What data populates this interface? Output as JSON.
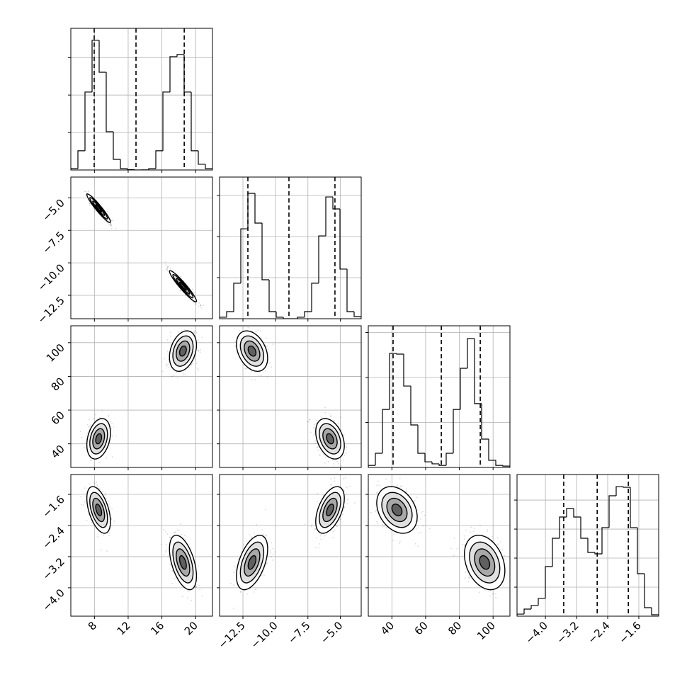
{
  "chart_data": {
    "type": "corner",
    "grid": true,
    "line_color": "#000000",
    "grid_color": "#b0b0b0",
    "point_color": "#000000",
    "contour_levels": [
      2,
      1.5,
      1,
      0.5
    ],
    "contour_fills": [
      "#ffffff",
      "#e0e0e0",
      "#a8a8a8",
      "#606060"
    ],
    "variables": [
      {
        "lim": [
          5.2,
          22.0
        ],
        "ticks": [
          8,
          12,
          16,
          20
        ],
        "quantiles": [
          7.97,
          12.93,
          18.65
        ],
        "hist": {
          "bins": [
            5.2,
            6.04,
            6.88,
            7.72,
            8.56,
            9.4,
            10.24,
            11.08,
            11.92,
            12.76,
            13.6,
            14.44,
            15.28,
            16.12,
            16.96,
            17.8,
            18.64,
            19.48,
            20.32,
            21.16,
            22.0
          ],
          "counts": [
            9,
            128,
            520,
            865,
            652,
            255,
            71,
            9,
            2,
            0,
            1,
            9,
            128,
            520,
            756,
            770,
            520,
            128,
            38,
            9
          ],
          "ylim": [
            0,
            945
          ],
          "yticks": [
            250,
            500,
            750
          ]
        }
      },
      {
        "lim": [
          -14.3,
          -3.4
        ],
        "ticks": [
          {
            "value": -12.5,
            "label": "−12.5"
          },
          {
            "value": -10,
            "label": "−10.0"
          },
          {
            "value": -7.5,
            "label": "−7.5"
          },
          {
            "value": -5,
            "label": "−5.0"
          }
        ],
        "quantiles": [
          -12.12,
          -8.96,
          -5.42
        ],
        "hist": {
          "bins": [
            -14.3,
            -13.755,
            -13.21,
            -12.665,
            -12.12,
            -11.575,
            -11.03,
            -10.485,
            -9.94,
            -9.395,
            -8.85,
            -8.305,
            -7.76,
            -7.215,
            -6.67,
            -6.125,
            -5.58,
            -5.035,
            -4.49,
            -3.945,
            -3.4
          ],
          "counts": [
            9,
            43,
            216,
            547,
            763,
            582,
            237,
            43,
            9,
            0,
            0,
            9,
            43,
            216,
            504,
            741,
            668,
            302,
            43,
            13
          ],
          "ylim": [
            0,
            862
          ],
          "yticks": [
            250,
            500,
            750
          ]
        }
      },
      {
        "lim": [
          26,
          110
        ],
        "ticks": [
          40,
          60,
          80,
          100
        ],
        "quantiles": [
          40.7,
          69.3,
          92.4
        ],
        "hist": {
          "bins": [
            26,
            30.2,
            34.4,
            38.6,
            42.8,
            47,
            51.2,
            55.4,
            59.6,
            63.8,
            68,
            72.2,
            76.4,
            80.6,
            84.8,
            89,
            93.2,
            97.4,
            101.6,
            105.8,
            110
          ],
          "counts": [
            9,
            63,
            258,
            507,
            504,
            362,
            189,
            63,
            25,
            16,
            9,
            63,
            258,
            441,
            573,
            284,
            126,
            32,
            9,
            6
          ],
          "ylim": [
            0,
            630
          ],
          "yticks": [
            200,
            400,
            600
          ]
        }
      },
      {
        "lim": [
          -4.73,
          -1.09
        ],
        "ticks": [
          {
            "value": -4.0,
            "label": "−4.0"
          },
          {
            "value": -3.2,
            "label": "−3.2"
          },
          {
            "value": -2.4,
            "label": "−2.4"
          },
          {
            "value": -1.6,
            "label": "−1.6"
          }
        ],
        "quantiles": [
          -3.53,
          -2.67,
          -1.87
        ],
        "hist": {
          "bins": [
            -4.73,
            -4.548,
            -4.366,
            -4.184,
            -4.002,
            -3.82,
            -3.638,
            -3.456,
            -3.274,
            -3.092,
            -2.91,
            -2.728,
            -2.546,
            -2.364,
            -2.182,
            -2.0,
            -1.818,
            -1.636,
            -1.454,
            -1.272,
            -1.09
          ],
          "counts": [
            18,
            61,
            92,
            153,
            427,
            671,
            854,
            927,
            854,
            671,
            549,
            537,
            763,
            1037,
            1116,
            1110,
            763,
            366,
            73,
            12
          ],
          "ylim": [
            0,
            1220
          ],
          "yticks": [
            250,
            500,
            750,
            1000
          ]
        }
      }
    ],
    "components": [
      {
        "mean": [
          8.5,
          -5.8,
          43,
          -2.0
        ],
        "sd": [
          0.7,
          0.55,
          6,
          0.3
        ]
      },
      {
        "mean": [
          18.5,
          -11.8,
          95,
          -3.35
        ],
        "sd": [
          0.8,
          0.6,
          6,
          0.35
        ]
      }
    ],
    "correlation": [
      [
        1,
        -0.95,
        0.3,
        -0.5
      ],
      [
        -0.95,
        1,
        -0.35,
        0.5
      ],
      [
        0.3,
        -0.35,
        1,
        -0.3
      ],
      [
        -0.5,
        0.5,
        -0.3,
        1
      ]
    ]
  }
}
